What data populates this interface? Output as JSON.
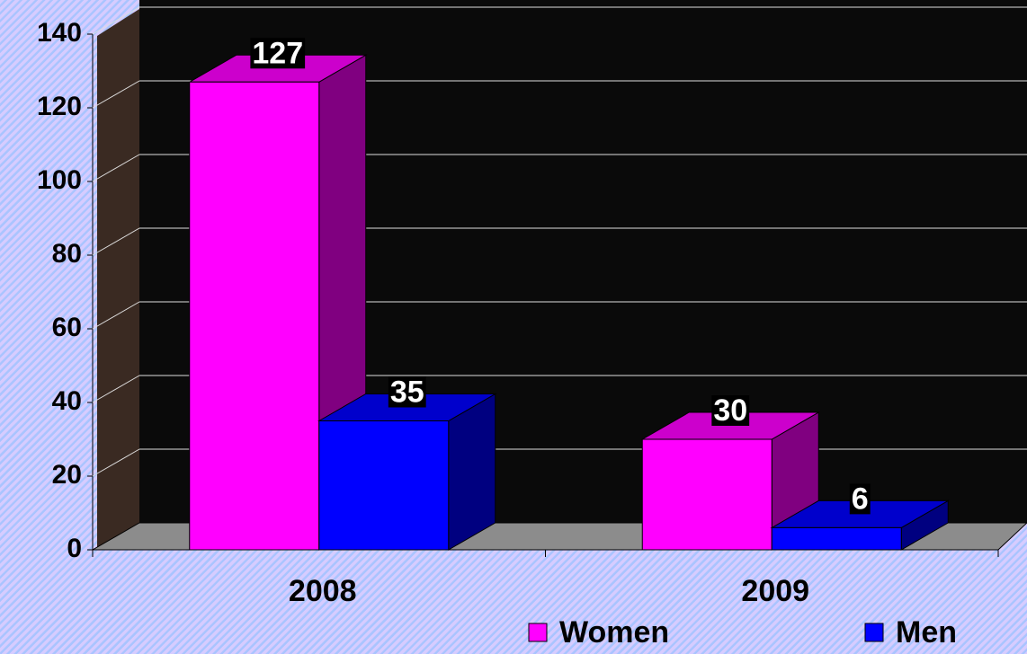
{
  "chart_data": {
    "type": "bar3d",
    "categories": [
      "2008",
      "2009"
    ],
    "series": [
      {
        "name": "Women",
        "color": "#ff00ff",
        "values": [
          127,
          30
        ]
      },
      {
        "name": "Men",
        "color": "#0000ff",
        "values": [
          35,
          6
        ]
      }
    ],
    "ylim": [
      0,
      140
    ],
    "yticks": [
      0,
      20,
      40,
      60,
      80,
      100,
      120,
      140
    ],
    "grid": true,
    "legend": "bottom"
  }
}
